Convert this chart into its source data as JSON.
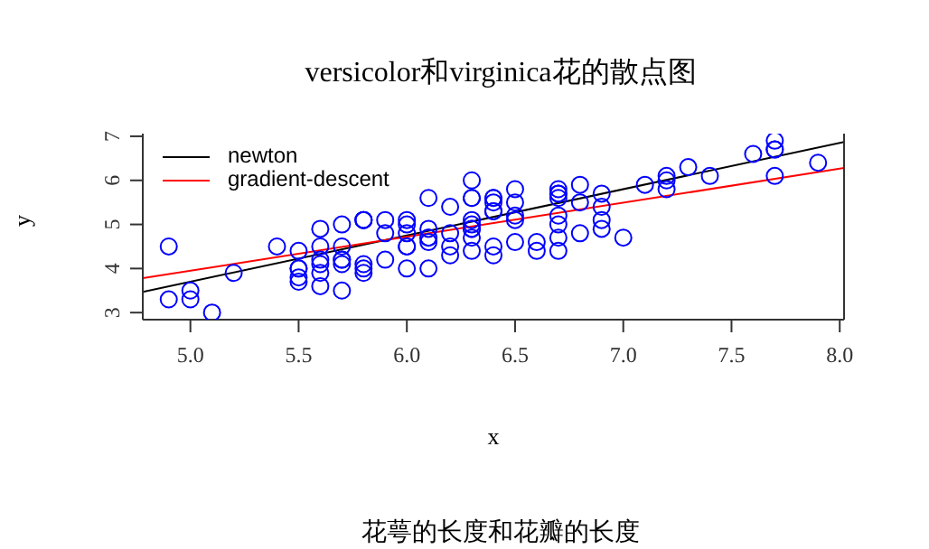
{
  "chart_data": {
    "type": "scatter",
    "title": "versicolor和virginica花的散点图",
    "subtitle": "花萼的长度和花瓣的长度",
    "xlabel": "x",
    "ylabel": "y",
    "xlim": [
      4.78,
      8.02
    ],
    "ylim": [
      2.84,
      7.06
    ],
    "xticks": [
      {
        "value": 5,
        "label": "5.0"
      },
      5.5,
      {
        "value": 6,
        "label": "6.0"
      },
      6.5,
      {
        "value": 7,
        "label": "7.0"
      },
      7.5,
      {
        "value": 8,
        "label": "8.0"
      }
    ],
    "yticks": [
      3,
      4,
      5,
      6,
      7
    ],
    "legend": "top left",
    "series": [
      {
        "marker": "circle",
        "color": "#0000ff",
        "x": [
          7.0,
          6.4,
          6.9,
          5.5,
          6.5,
          5.7,
          6.3,
          4.9,
          6.6,
          5.2,
          5.0,
          5.9,
          6.0,
          6.1,
          5.6,
          6.7,
          5.6,
          5.8,
          6.2,
          5.6,
          5.9,
          6.1,
          6.3,
          6.1,
          6.4,
          6.6,
          6.8,
          6.7,
          6.0,
          5.7,
          5.5,
          5.5,
          5.8,
          6.0,
          5.4,
          6.0,
          6.7,
          6.3,
          5.6,
          5.5,
          5.5,
          6.1,
          5.8,
          5.0,
          5.6,
          5.7,
          5.7,
          6.2,
          5.1,
          5.7,
          6.3,
          5.8,
          7.1,
          6.3,
          6.5,
          7.6,
          4.9,
          7.3,
          6.7,
          7.2,
          6.5,
          6.4,
          6.8,
          5.7,
          5.8,
          6.4,
          6.5,
          7.7,
          7.7,
          6.0,
          6.9,
          5.6,
          7.7,
          6.3,
          6.7,
          7.2,
          6.2,
          6.1,
          6.4,
          7.2,
          7.4,
          7.9,
          6.4,
          6.3,
          6.1,
          7.7,
          6.3,
          6.4,
          6.0,
          6.9,
          6.7,
          6.9,
          5.8,
          6.8,
          6.7,
          6.7,
          6.3,
          6.5,
          6.2,
          5.9
        ],
        "values": [
          4.7,
          4.5,
          4.9,
          4.0,
          4.6,
          4.5,
          4.7,
          3.3,
          4.6,
          3.9,
          3.5,
          4.2,
          4.0,
          4.7,
          3.6,
          4.4,
          4.5,
          4.1,
          4.5,
          3.9,
          4.8,
          4.0,
          4.9,
          4.7,
          4.3,
          4.4,
          4.8,
          5.0,
          4.5,
          3.5,
          3.8,
          3.7,
          3.9,
          5.1,
          4.5,
          4.5,
          4.7,
          4.4,
          4.1,
          4.0,
          4.4,
          4.6,
          4.0,
          3.3,
          4.2,
          4.2,
          4.2,
          4.3,
          3.0,
          4.1,
          6.0,
          5.1,
          5.9,
          5.6,
          5.8,
          6.6,
          4.5,
          6.3,
          5.8,
          6.1,
          5.1,
          5.3,
          5.5,
          5.0,
          5.1,
          5.3,
          5.5,
          6.7,
          6.9,
          5.0,
          5.7,
          4.9,
          6.7,
          4.9,
          5.7,
          6.0,
          4.8,
          4.9,
          5.6,
          5.8,
          6.1,
          6.4,
          5.6,
          5.1,
          5.6,
          6.1,
          5.6,
          5.5,
          4.8,
          5.4,
          5.6,
          5.1,
          5.1,
          5.9,
          5.7,
          5.2,
          5.0,
          5.2,
          5.4,
          5.1
        ]
      },
      {
        "type": "line",
        "name": "newton",
        "color": "#000000",
        "x": [
          4.78,
          8.02
        ],
        "values": [
          3.47,
          6.87
        ]
      },
      {
        "type": "line",
        "name": "gradient-descent",
        "color": "#ff0000",
        "x": [
          4.78,
          8.02
        ],
        "values": [
          3.78,
          6.28
        ]
      }
    ]
  }
}
